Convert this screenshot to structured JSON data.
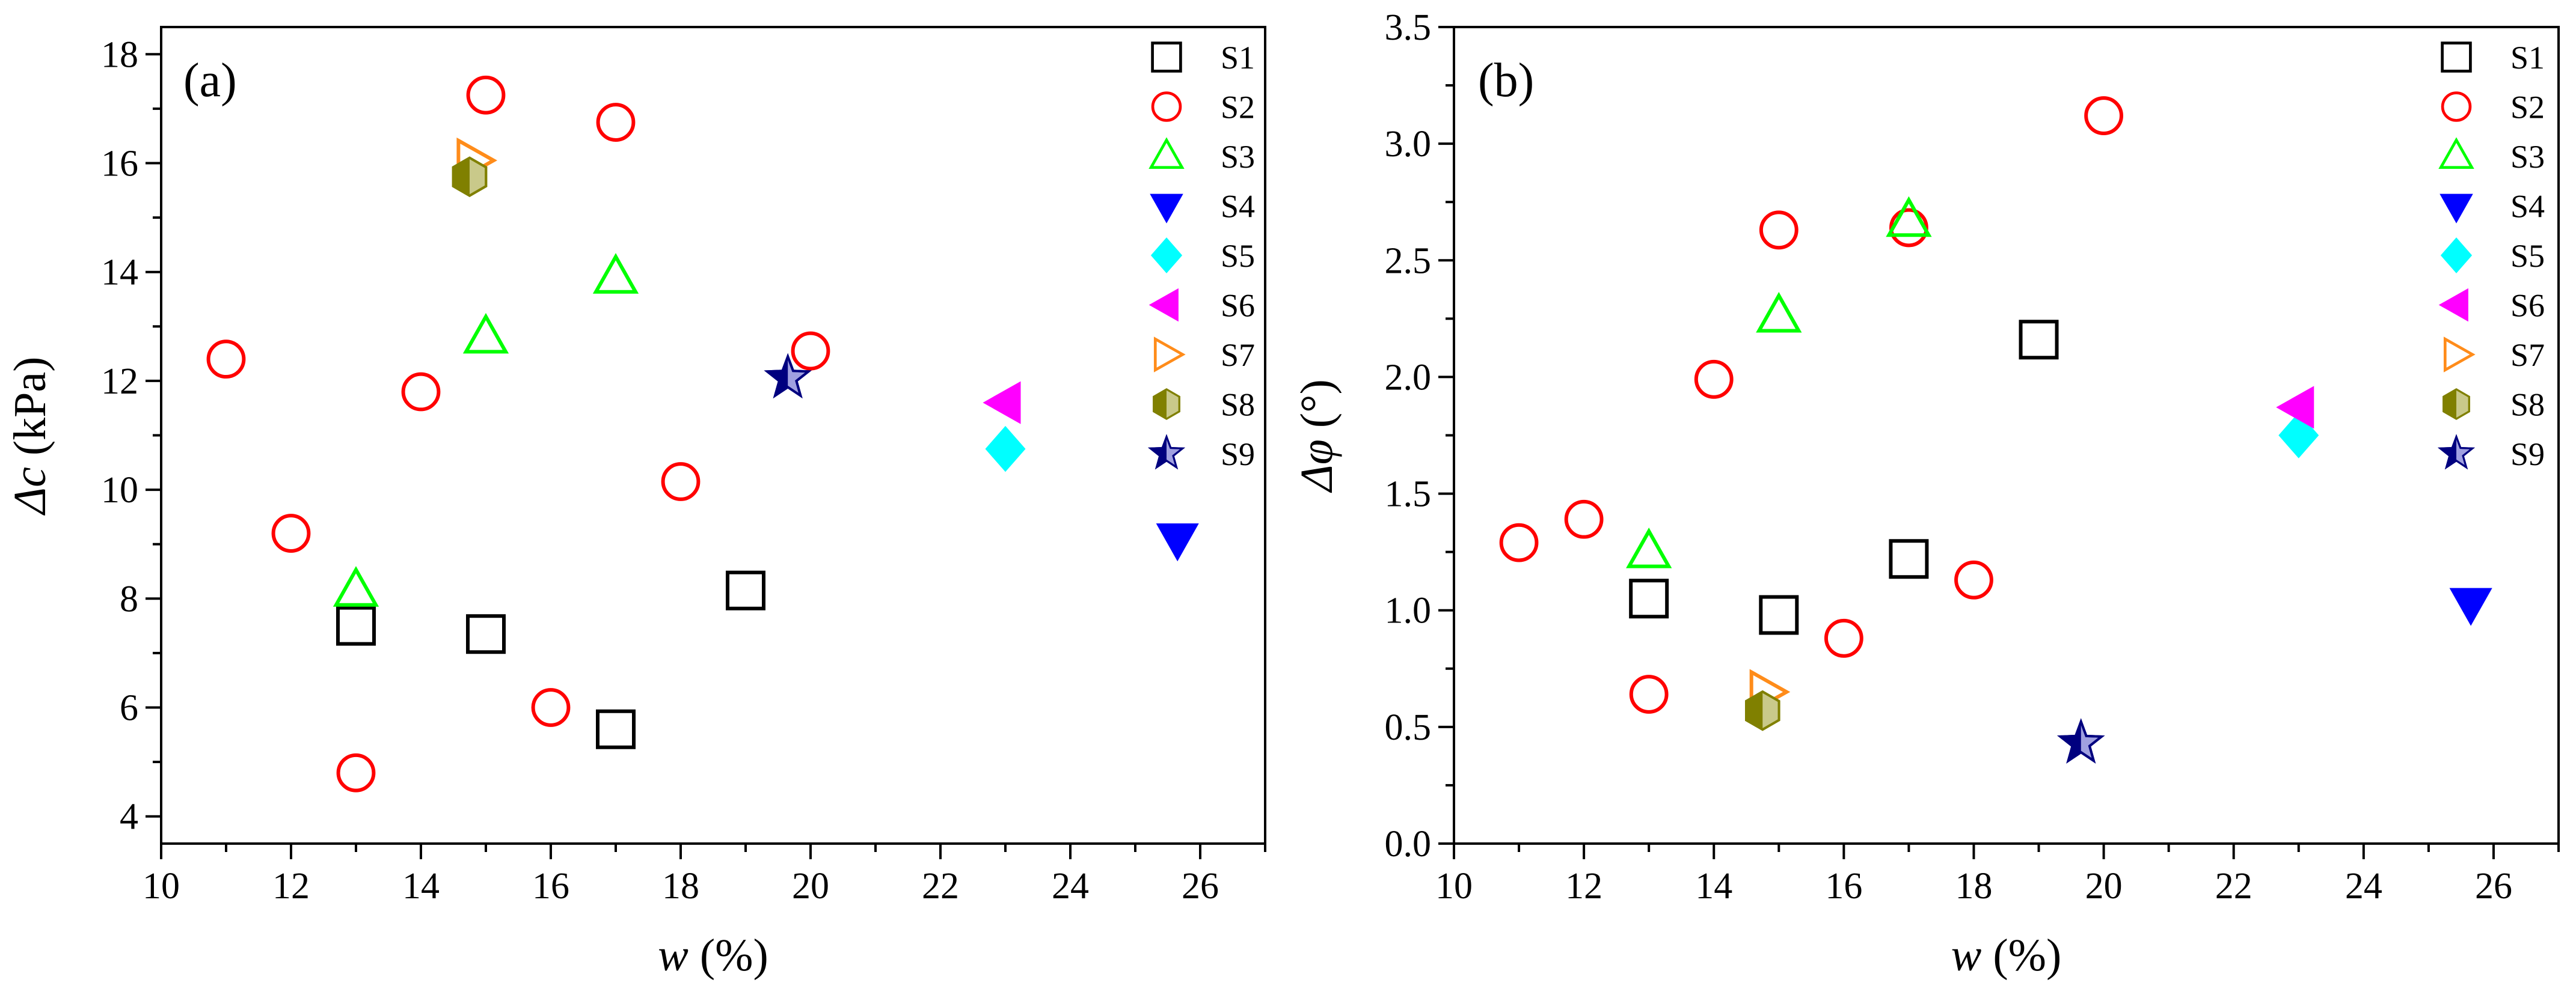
{
  "chart_data": [
    {
      "type": "scatter",
      "panel_label": "(a)",
      "ylabel_symbol": "Δc",
      "ylabel_unit": " (kPa)",
      "xlabel_symbol": "w",
      "xlabel_unit": " (%)",
      "xlim": [
        10,
        27
      ],
      "ylim": [
        3.5,
        18.5
      ],
      "xticks": [
        10,
        12,
        14,
        16,
        18,
        20,
        22,
        24,
        26
      ],
      "yticks": [
        4,
        6,
        8,
        10,
        12,
        14,
        16,
        18
      ],
      "xtick_labels": [
        "10",
        "12",
        "14",
        "16",
        "18",
        "20",
        "22",
        "24",
        "26"
      ],
      "ytick_labels": [
        "4",
        "6",
        "8",
        "10",
        "12",
        "14",
        "16",
        "18"
      ],
      "legend_position": "top-right",
      "series": [
        {
          "name": "S1",
          "points": [
            [
              13,
              7.5
            ],
            [
              15,
              7.35
            ],
            [
              17,
              5.6
            ],
            [
              19,
              8.15
            ]
          ]
        },
        {
          "name": "S2",
          "points": [
            [
              11,
              12.4
            ],
            [
              12,
              9.2
            ],
            [
              13,
              4.8
            ],
            [
              14,
              11.8
            ],
            [
              15,
              17.25
            ],
            [
              16,
              6.0
            ],
            [
              17,
              16.75
            ],
            [
              18,
              10.15
            ],
            [
              20,
              12.55
            ]
          ]
        },
        {
          "name": "S3",
          "points": [
            [
              13,
              8.15
            ],
            [
              15,
              12.8
            ],
            [
              17,
              13.9
            ]
          ]
        },
        {
          "name": "S4",
          "points": [
            [
              25.65,
              9.1
            ]
          ]
        },
        {
          "name": "S5",
          "points": [
            [
              23.0,
              10.75
            ]
          ]
        },
        {
          "name": "S6",
          "points": [
            [
              23.0,
              11.6
            ]
          ]
        },
        {
          "name": "S7",
          "points": [
            [
              14.8,
              16.05
            ]
          ]
        },
        {
          "name": "S8",
          "points": [
            [
              14.75,
              15.75
            ]
          ]
        },
        {
          "name": "S9",
          "points": [
            [
              19.65,
              12.05
            ]
          ]
        }
      ]
    },
    {
      "type": "scatter",
      "panel_label": "(b)",
      "ylabel_symbol": "Δφ",
      "ylabel_unit": " (°)",
      "xlabel_symbol": "w",
      "xlabel_unit": " (%)",
      "xlim": [
        10,
        27
      ],
      "ylim": [
        0,
        3.5
      ],
      "xticks": [
        10,
        12,
        14,
        16,
        18,
        20,
        22,
        24,
        26
      ],
      "yticks": [
        0,
        0.5,
        1.0,
        1.5,
        2.0,
        2.5,
        3.0,
        3.5
      ],
      "xtick_labels": [
        "10",
        "12",
        "14",
        "16",
        "18",
        "20",
        "22",
        "24",
        "26"
      ],
      "ytick_labels": [
        "0.0",
        "0.5",
        "1.0",
        "1.5",
        "2.0",
        "2.5",
        "3.0",
        "3.5"
      ],
      "legend_position": "top-right",
      "series": [
        {
          "name": "S1",
          "points": [
            [
              13,
              1.05
            ],
            [
              15,
              0.98
            ],
            [
              17,
              1.22
            ],
            [
              19,
              2.16
            ]
          ]
        },
        {
          "name": "S2",
          "points": [
            [
              11,
              1.29
            ],
            [
              12,
              1.39
            ],
            [
              13,
              0.64
            ],
            [
              14,
              1.99
            ],
            [
              15,
              2.63
            ],
            [
              16,
              0.88
            ],
            [
              17,
              2.64
            ],
            [
              18,
              1.13
            ],
            [
              20,
              3.12
            ]
          ]
        },
        {
          "name": "S3",
          "points": [
            [
              13,
              1.25
            ],
            [
              15,
              2.26
            ],
            [
              17,
              2.67
            ]
          ]
        },
        {
          "name": "S4",
          "points": [
            [
              25.65,
              1.03
            ]
          ]
        },
        {
          "name": "S5",
          "points": [
            [
              23.0,
              1.75
            ]
          ]
        },
        {
          "name": "S6",
          "points": [
            [
              23.0,
              1.87
            ]
          ]
        },
        {
          "name": "S7",
          "points": [
            [
              14.8,
              0.65
            ]
          ]
        },
        {
          "name": "S8",
          "points": [
            [
              14.75,
              0.57
            ]
          ]
        },
        {
          "name": "S9",
          "points": [
            [
              19.65,
              0.43
            ]
          ]
        }
      ]
    }
  ],
  "series_styles": {
    "S1": {
      "marker": "square",
      "color": "#000000",
      "filled": false
    },
    "S2": {
      "marker": "circle",
      "color": "#ff0000",
      "filled": false
    },
    "S3": {
      "marker": "triangle-up",
      "color": "#00ff00",
      "filled": false
    },
    "S4": {
      "marker": "triangle-down",
      "color": "#0000ff",
      "filled": true
    },
    "S5": {
      "marker": "diamond",
      "color": "#00ffff",
      "filled": true
    },
    "S6": {
      "marker": "triangle-left",
      "color": "#ff00ff",
      "filled": true
    },
    "S7": {
      "marker": "triangle-right",
      "color": "#ff8c1a",
      "filled": false
    },
    "S8": {
      "marker": "hexagon",
      "color": "#808000",
      "filled": "half"
    },
    "S9": {
      "marker": "star",
      "color": "#00007f",
      "filled": "half"
    }
  }
}
